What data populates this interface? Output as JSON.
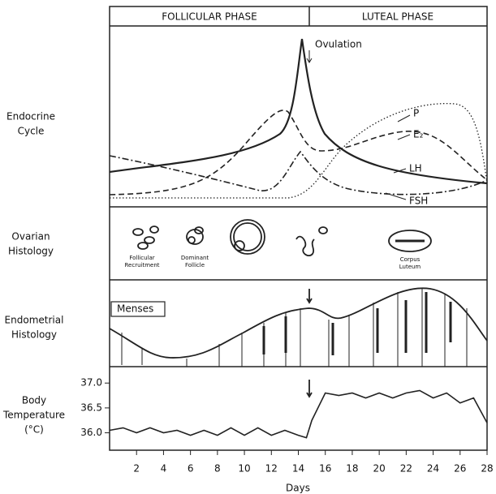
{
  "header": {
    "follicular": "FOLLICULAR PHASE",
    "luteal": "LUTEAL PHASE"
  },
  "rows": {
    "endocrine": [
      "Endocrine",
      "Cycle"
    ],
    "ovarian": [
      "Ovarian",
      "Histology"
    ],
    "endometrial": [
      "Endometrial",
      "Histology"
    ],
    "temperature": [
      "Body",
      "Temperature",
      "(°C)"
    ]
  },
  "endocrine": {
    "ovulation": "Ovulation",
    "p": "P",
    "e2": "E₂",
    "lh": "LH",
    "fsh": "FSH"
  },
  "ovarian": {
    "recruitment": [
      "Follicular",
      "Recruitment"
    ],
    "dominant": [
      "Dominant",
      "Follicle"
    ],
    "corpus": [
      "Corpus",
      "Luteum"
    ]
  },
  "endometrial": {
    "menses": "Menses"
  },
  "chart_data": {
    "type": "line",
    "xlabel": "Days",
    "x": [
      0,
      1,
      2,
      3,
      4,
      5,
      6,
      7,
      8,
      9,
      10,
      11,
      12,
      13,
      14,
      14.6,
      15,
      16,
      17,
      18,
      19,
      20,
      21,
      22,
      23,
      24,
      25,
      26,
      27,
      28
    ],
    "values": [
      36.05,
      36.1,
      36.0,
      36.1,
      36.0,
      36.05,
      35.95,
      36.05,
      35.95,
      36.1,
      35.95,
      36.1,
      35.95,
      36.05,
      35.95,
      35.9,
      36.25,
      36.8,
      36.75,
      36.8,
      36.7,
      36.8,
      36.7,
      36.8,
      36.85,
      36.7,
      36.8,
      36.6,
      36.7,
      36.2
    ],
    "xlim": [
      0,
      28
    ],
    "xticks": [
      2,
      4,
      6,
      8,
      10,
      12,
      14,
      16,
      18,
      20,
      22,
      24,
      26,
      28
    ],
    "ylim": [
      35.65,
      37.33
    ],
    "yticks": [
      {
        "value": 37.0,
        "label": "37.0"
      },
      36.5,
      {
        "value": 36.0,
        "label": "36.0"
      }
    ]
  }
}
